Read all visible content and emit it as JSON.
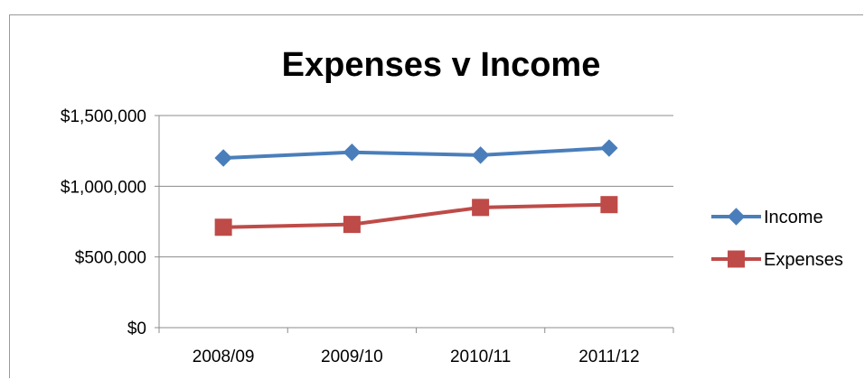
{
  "chart_data": {
    "type": "line",
    "title": "Expenses v Income",
    "xlabel": "",
    "ylabel": "",
    "categories": [
      "2008/09",
      "2009/10",
      "2010/11",
      "2011/12"
    ],
    "y_ticks": [
      "$0",
      "$500,000",
      "$1,000,000",
      "$1,500,000"
    ],
    "ylim": [
      0,
      1500000
    ],
    "grid": "horizontal",
    "legend_position": "right",
    "series": [
      {
        "name": "Income",
        "color": "#4a7ebb",
        "marker": "diamond",
        "values": [
          1200000,
          1240000,
          1220000,
          1270000
        ]
      },
      {
        "name": "Expenses",
        "color": "#be4b48",
        "marker": "square",
        "values": [
          710000,
          730000,
          850000,
          870000
        ]
      }
    ]
  }
}
